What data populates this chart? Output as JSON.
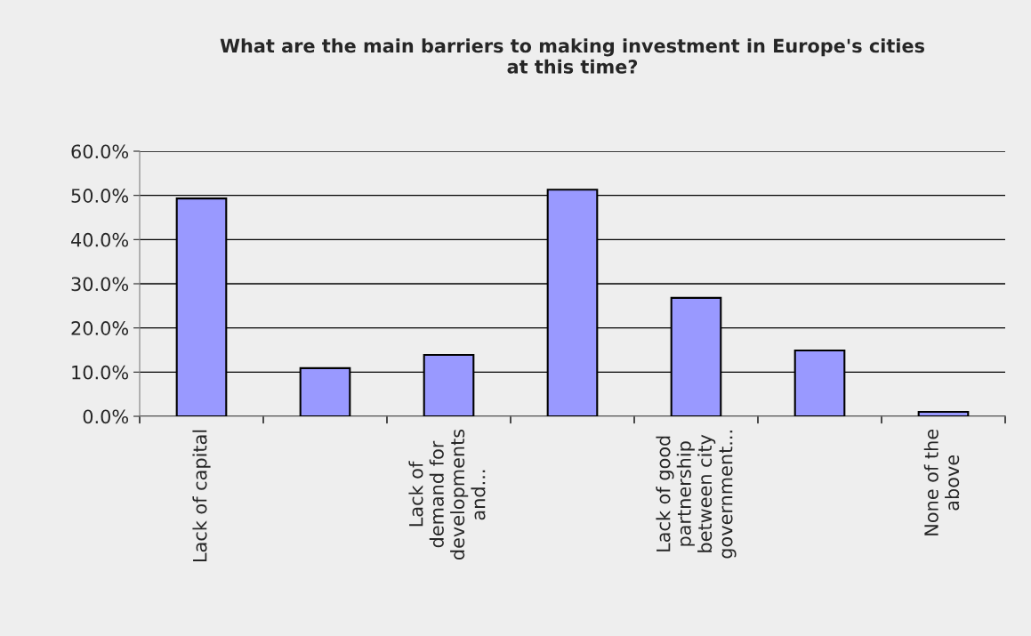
{
  "chart_data": {
    "type": "bar",
    "title": "What are the main barriers to making investment in Europe's cities\nat this time?",
    "categories": [
      "Lack of capital",
      null,
      "Lack of\ndemand for\ndevelopments\nand...",
      null,
      "Lack of good\npartnership\nbetween city\ngovernment...",
      null,
      "None of the\nabove"
    ],
    "values": [
      49.3,
      10.9,
      13.9,
      51.3,
      26.8,
      14.9,
      1.0
    ],
    "color": "#9999ff",
    "ylim": [
      0,
      60
    ],
    "yticks": [
      {
        "value": 0,
        "label": "0.0%"
      },
      {
        "value": 10,
        "label": "10.0%"
      },
      {
        "value": 20,
        "label": "20.0%"
      },
      {
        "value": 30,
        "label": "30.0%"
      },
      {
        "value": 40,
        "label": "40.0%"
      },
      {
        "value": 50,
        "label": "50.0%"
      },
      {
        "value": 60,
        "label": "60.0%"
      }
    ],
    "grid": "y",
    "legend": false
  }
}
